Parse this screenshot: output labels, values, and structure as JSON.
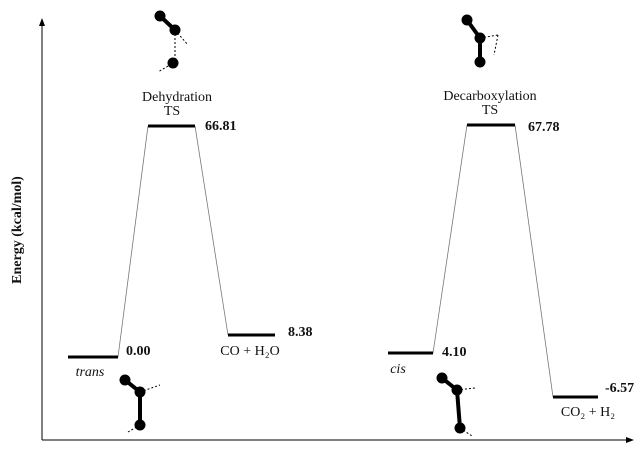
{
  "axis_label": "Energy (kcal/mol)",
  "levels": [
    {
      "energy": "0.00",
      "label": "trans"
    },
    {
      "energy": "66.81",
      "label": "TS",
      "reaction": "Dehydration"
    },
    {
      "energy": "8.38",
      "label": "CO + H₂O"
    },
    {
      "energy": "4.10",
      "label": "cis"
    },
    {
      "energy": "67.78",
      "label": "TS",
      "reaction": "Decarboxylation"
    },
    {
      "energy": "-6.57",
      "label": "CO₂ + H₂"
    }
  ]
}
